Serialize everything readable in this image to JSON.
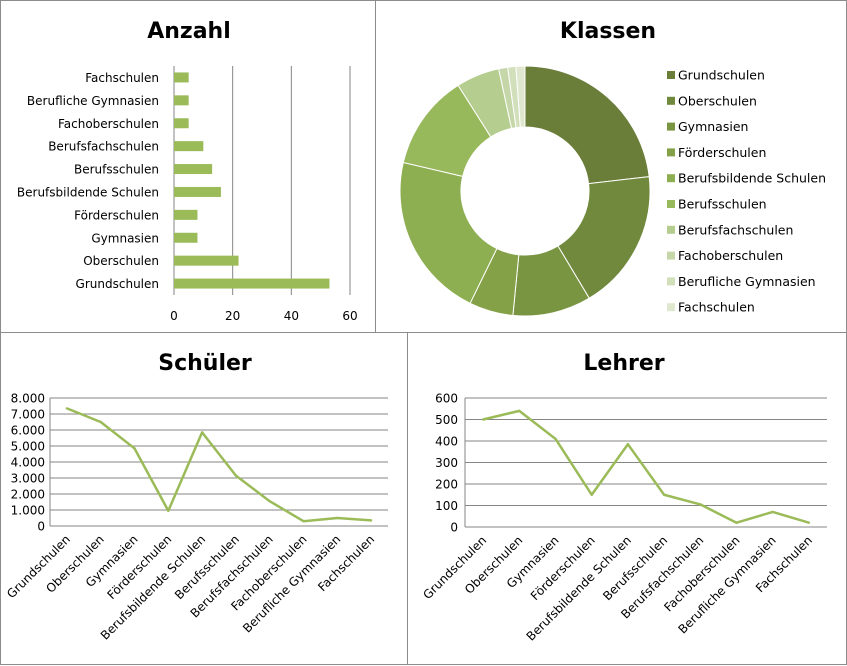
{
  "chart_data": [
    {
      "id": "anzahl",
      "type": "bar",
      "orientation": "horizontal",
      "title": "Anzahl",
      "categories": [
        "Grundschulen",
        "Oberschulen",
        "Gymnasien",
        "Förderschulen",
        "Berufsbildende Schulen",
        "Berufsschulen",
        "Berufsfachschulen",
        "Fachoberschulen",
        "Berufliche Gymnasien",
        "Fachschulen"
      ],
      "values": [
        53,
        22,
        8,
        8,
        16,
        13,
        10,
        5,
        5,
        5
      ],
      "xlim": [
        0,
        60
      ],
      "xticks": [
        0,
        20,
        40,
        60
      ],
      "color": "#9bbb59",
      "grid": true
    },
    {
      "id": "klassen",
      "type": "pie",
      "donut": true,
      "title": "Klassen",
      "categories": [
        "Grundschulen",
        "Oberschulen",
        "Gymnasien",
        "Förderschulen",
        "Berufsbildende Schulen",
        "Berufsschulen",
        "Berufsfachschulen",
        "Fachoberschulen",
        "Berufliche Gymnasien",
        "Fachschulen"
      ],
      "values": [
        24.0,
        18.9,
        10.5,
        5.9,
        22.2,
        12.8,
        5.8,
        1.2,
        1.1,
        1.2
      ],
      "colors": [
        "#6a7e3a",
        "#71893d",
        "#7a9541",
        "#84a148",
        "#8dae51",
        "#98b85c",
        "#b6cd90",
        "#c5d6a8",
        "#d1dfbb",
        "#dfe8cf"
      ],
      "legend": "right"
    },
    {
      "id": "schueler",
      "type": "line",
      "title": "Schüler",
      "categories": [
        "Grundschulen",
        "Oberschulen",
        "Gymnasien",
        "Förderschulen",
        "Berufsbildende Schulen",
        "Berufsschulen",
        "Berufsfachschulen",
        "Fachoberschulen",
        "Berufliche Gymnasien",
        "Fachschulen"
      ],
      "values": [
        7350,
        6500,
        4850,
        950,
        5850,
        3150,
        1550,
        300,
        500,
        350
      ],
      "ylim": [
        0,
        8000
      ],
      "yticks": [
        0,
        1000,
        2000,
        3000,
        4000,
        5000,
        6000,
        7000,
        8000
      ],
      "ytick_labels": [
        "0",
        "1.000",
        "2.000",
        "3.000",
        "4.000",
        "5.000",
        "6.000",
        "7.000",
        "8.000"
      ],
      "color": "#9bbb59",
      "grid": true
    },
    {
      "id": "lehrer",
      "type": "line",
      "title": "Lehrer",
      "categories": [
        "Grundschulen",
        "Oberschulen",
        "Gymnasien",
        "Förderschulen",
        "Berufsbildende Schulen",
        "Berufsschulen",
        "Berufsfachschulen",
        "Fachoberschulen",
        "Berufliche Gymnasien",
        "Fachschulen"
      ],
      "values": [
        500,
        540,
        410,
        150,
        385,
        150,
        105,
        20,
        70,
        20
      ],
      "ylim": [
        0,
        600
      ],
      "yticks": [
        0,
        100,
        200,
        300,
        400,
        500,
        600
      ],
      "ytick_labels": [
        "0",
        "100",
        "200",
        "300",
        "400",
        "500",
        "600"
      ],
      "color": "#9bbb59",
      "grid": true
    }
  ]
}
